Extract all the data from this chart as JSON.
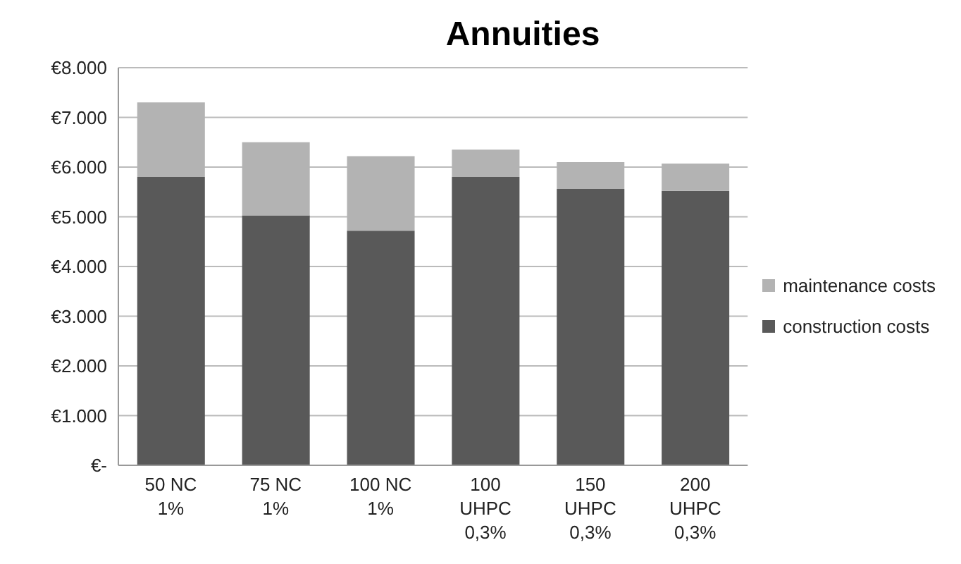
{
  "chart_data": {
    "type": "bar",
    "title": "Annuities",
    "stacked": true,
    "categories": [
      "50 NC\n1%",
      "75 NC\n1%",
      "100 NC\n1%",
      "100\nUHPC\n0,3%",
      "150\nUHPC\n0,3%",
      "200\nUHPC\n0,3%"
    ],
    "series": [
      {
        "name": "construction costs",
        "color": "#595959",
        "values": [
          5800,
          5030,
          4720,
          5800,
          5560,
          5520
        ]
      },
      {
        "name": "maintenance costs",
        "color": "#b3b3b3",
        "values": [
          1500,
          1470,
          1500,
          550,
          540,
          550
        ]
      }
    ],
    "ylim": [
      0,
      8000
    ],
    "yticks": [
      {
        "value": 0,
        "label": "€-"
      },
      {
        "value": 1000,
        "label": "€1.000"
      },
      {
        "value": 2000,
        "label": "€2.000"
      },
      {
        "value": 3000,
        "label": "€3.000"
      },
      {
        "value": 4000,
        "label": "€4.000"
      },
      {
        "value": 5000,
        "label": "€5.000"
      },
      {
        "value": 6000,
        "label": "€6.000"
      },
      {
        "value": 7000,
        "label": "€7.000"
      },
      {
        "value": 8000,
        "label": "€8.000"
      }
    ],
    "grid": "y",
    "legend": "right"
  }
}
